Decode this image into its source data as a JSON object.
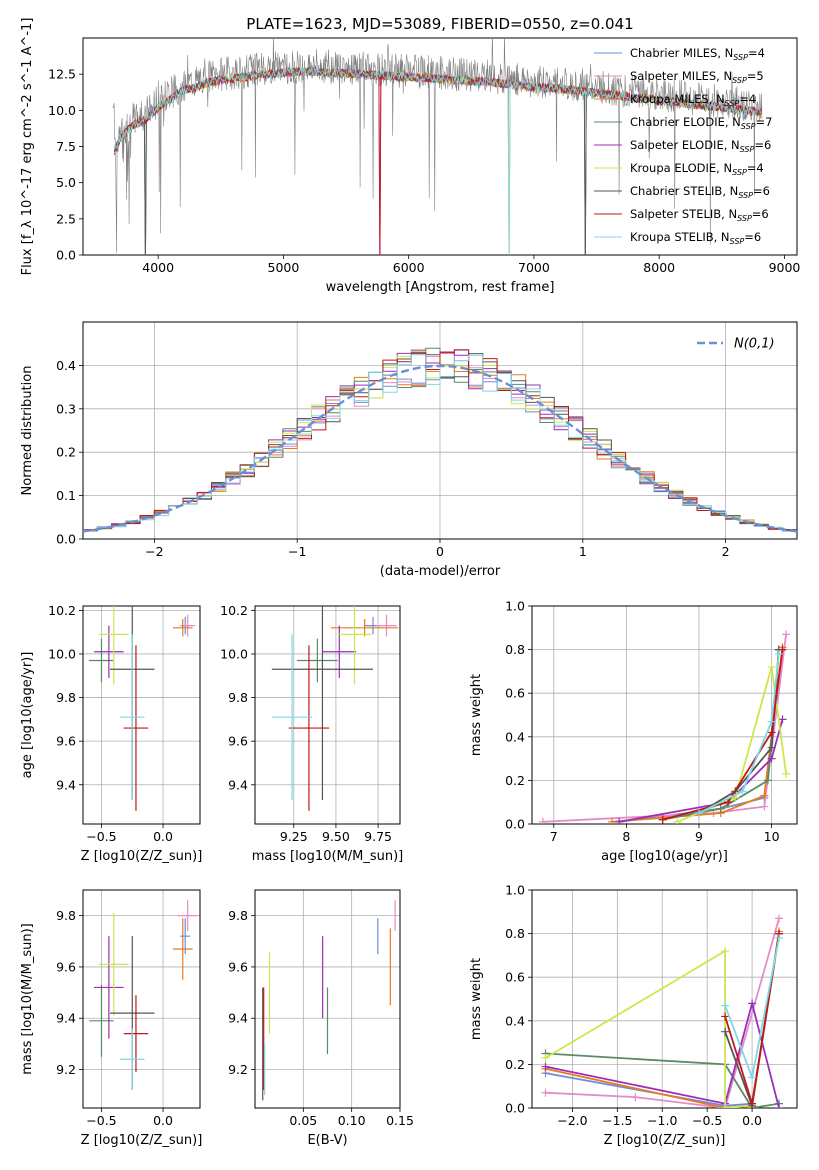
{
  "figure": {
    "title": "PLATE=1623, MJD=53089, FIBERID=0550, z=0.041"
  },
  "models": [
    {
      "name": "Chabrier MILES",
      "nssp": "4",
      "color": "#6a8fd8"
    },
    {
      "name": "Salpeter MILES",
      "nssp": "5",
      "color": "#e48bc8"
    },
    {
      "name": "Kroupa MILES",
      "nssp": "4",
      "color": "#e87a22"
    },
    {
      "name": "Chabrier ELODIE",
      "nssp": "7",
      "color": "#5b8a66"
    },
    {
      "name": "Salpeter ELODIE",
      "nssp": "6",
      "color": "#9a2fb8"
    },
    {
      "name": "Kroupa ELODIE",
      "nssp": "4",
      "color": "#cfe64a"
    },
    {
      "name": "Chabrier STELIB",
      "nssp": "6",
      "color": "#555555"
    },
    {
      "name": "Salpeter STELIB",
      "nssp": "6",
      "color": "#c01818"
    },
    {
      "name": "Kroupa STELIB",
      "nssp": "6",
      "color": "#7fd8e6"
    }
  ],
  "chart_data": [
    {
      "id": "spectrum",
      "type": "line",
      "xlabel": "wavelength [Angstrom, rest frame]",
      "ylabel": "Flux [f_λ 10^-17 erg cm^-2 s^-1 A^-1]",
      "xlim": [
        3400,
        9100
      ],
      "ylim": [
        0,
        15
      ],
      "xticks": [
        4000,
        5000,
        6000,
        7000,
        8000,
        9000
      ],
      "yticks": [
        0.0,
        2.5,
        5.0,
        7.5,
        10.0,
        12.5
      ],
      "grid": false,
      "legend": "right",
      "data_color": "#808080",
      "data_envelope": [
        [
          3650,
          7.6
        ],
        [
          3700,
          8.5
        ],
        [
          3800,
          9.4
        ],
        [
          3900,
          9.8
        ],
        [
          4000,
          10.6
        ],
        [
          4100,
          11.2
        ],
        [
          4200,
          11.8
        ],
        [
          4300,
          12.0
        ],
        [
          4400,
          12.3
        ],
        [
          4500,
          12.5
        ],
        [
          4600,
          12.6
        ],
        [
          4700,
          12.7
        ],
        [
          4800,
          12.9
        ],
        [
          5000,
          13.0
        ],
        [
          5200,
          13.1
        ],
        [
          5400,
          13.0
        ],
        [
          5600,
          12.9
        ],
        [
          5800,
          12.8
        ],
        [
          6000,
          12.7
        ],
        [
          6200,
          12.6
        ],
        [
          6400,
          12.5
        ],
        [
          6600,
          12.4
        ],
        [
          6800,
          12.2
        ],
        [
          7000,
          12.0
        ],
        [
          7200,
          11.9
        ],
        [
          7400,
          11.7
        ],
        [
          7600,
          11.5
        ],
        [
          7800,
          11.3
        ],
        [
          8000,
          11.1
        ],
        [
          8200,
          10.9
        ],
        [
          8400,
          10.7
        ],
        [
          8600,
          10.5
        ],
        [
          8800,
          10.3
        ]
      ],
      "model_dropouts": [
        3900,
        5770,
        6800,
        7410
      ]
    },
    {
      "id": "residuals",
      "type": "line",
      "xlabel": "(data-model)/error",
      "ylabel": "Normed distribution",
      "xlim": [
        -2.5,
        2.5
      ],
      "ylim": [
        0,
        0.5
      ],
      "xticks": [
        -2,
        -1,
        0,
        1,
        2
      ],
      "yticks": [
        0.0,
        0.1,
        0.2,
        0.3,
        0.4
      ],
      "grid": true,
      "legend": "top-right",
      "reference_label": "N(0,1)",
      "reference_color": "#6a8fd8",
      "bin_width": 0.1
    },
    {
      "id": "age_vs_Z",
      "type": "scatter",
      "xlabel": "Z [log10(Z/Z_sun)]",
      "ylabel": "age [log10(age/yr)]",
      "xlim": [
        -0.65,
        0.3
      ],
      "ylim": [
        9.22,
        10.22
      ],
      "xticks": [
        -0.5,
        0.0
      ],
      "yticks": [
        9.4,
        9.6,
        9.8,
        10.0,
        10.2
      ],
      "grid": true,
      "points": [
        {
          "model": 0,
          "x": 0.18,
          "y": 10.13,
          "xerr": 0.04,
          "yerr": 0.04
        },
        {
          "model": 1,
          "x": 0.2,
          "y": 10.13,
          "xerr": 0.06,
          "yerr": 0.05
        },
        {
          "model": 2,
          "x": 0.16,
          "y": 10.12,
          "xerr": 0.08,
          "yerr": 0.04
        },
        {
          "model": 3,
          "x": -0.5,
          "y": 9.97,
          "xerr": 0.1,
          "yerr": 0.1
        },
        {
          "model": 4,
          "x": -0.44,
          "y": 10.01,
          "xerr": 0.12,
          "yerr": 0.12
        },
        {
          "model": 5,
          "x": -0.4,
          "y": 10.09,
          "xerr": 0.12,
          "yerr": 0.23
        },
        {
          "model": 6,
          "x": -0.25,
          "y": 9.93,
          "xerr": 0.18,
          "yerr": 0.6
        },
        {
          "model": 7,
          "x": -0.22,
          "y": 9.66,
          "xerr": 0.1,
          "yerr": 0.38
        },
        {
          "model": 8,
          "x": -0.25,
          "y": 9.71,
          "xerr": 0.1,
          "yerr": 0.38
        }
      ]
    },
    {
      "id": "age_vs_mass",
      "type": "scatter",
      "xlabel": "mass [log10(M/M_sun)]",
      "ylabel": "",
      "xlim": [
        9.02,
        9.88
      ],
      "ylim": [
        9.22,
        10.22
      ],
      "xticks": [
        9.25,
        9.5,
        9.75
      ],
      "yticks": [
        9.4,
        9.6,
        9.8,
        10.0,
        10.2
      ],
      "grid": true,
      "points": [
        {
          "model": 0,
          "x": 9.72,
          "y": 10.13,
          "xerr": 0.05,
          "yerr": 0.04
        },
        {
          "model": 1,
          "x": 9.8,
          "y": 10.13,
          "xerr": 0.06,
          "yerr": 0.05
        },
        {
          "model": 2,
          "x": 9.67,
          "y": 10.12,
          "xerr": 0.2,
          "yerr": 0.04
        },
        {
          "model": 3,
          "x": 9.39,
          "y": 9.97,
          "xerr": 0.12,
          "yerr": 0.1
        },
        {
          "model": 4,
          "x": 9.52,
          "y": 10.01,
          "xerr": 0.1,
          "yerr": 0.12
        },
        {
          "model": 5,
          "x": 9.61,
          "y": 10.09,
          "xerr": 0.1,
          "yerr": 0.23
        },
        {
          "model": 6,
          "x": 9.42,
          "y": 9.93,
          "xerr": 0.3,
          "yerr": 0.6
        },
        {
          "model": 7,
          "x": 9.34,
          "y": 9.66,
          "xerr": 0.12,
          "yerr": 0.38
        },
        {
          "model": 8,
          "x": 9.24,
          "y": 9.71,
          "xerr": 0.12,
          "yerr": 0.38
        }
      ]
    },
    {
      "id": "weight_vs_age",
      "type": "line",
      "xlabel": "age [log10(age/yr)]",
      "ylabel": "mass weight",
      "xlim": [
        6.7,
        10.35
      ],
      "ylim": [
        0,
        1
      ],
      "xticks": [
        7,
        8,
        9,
        10
      ],
      "yticks": [
        0.0,
        0.2,
        0.4,
        0.6,
        0.8,
        1.0
      ],
      "grid": true,
      "series": [
        {
          "model": 0,
          "x": [
            7.9,
            9.3,
            9.9,
            10.15
          ],
          "y": [
            0.01,
            0.07,
            0.12,
            0.8
          ]
        },
        {
          "model": 1,
          "x": [
            6.85,
            9.2,
            9.9,
            10.2
          ],
          "y": [
            0.01,
            0.05,
            0.08,
            0.87
          ]
        },
        {
          "model": 2,
          "x": [
            7.8,
            9.3,
            9.9,
            10.15
          ],
          "y": [
            0.01,
            0.05,
            0.13,
            0.81
          ]
        },
        {
          "model": 3,
          "x": [
            8.5,
            9.3,
            9.95,
            10.1
          ],
          "y": [
            0.02,
            0.07,
            0.2,
            0.8
          ]
        },
        {
          "model": 4,
          "x": [
            7.9,
            9.4,
            10.0,
            10.15
          ],
          "y": [
            0.01,
            0.1,
            0.3,
            0.48
          ]
        },
        {
          "model": 5,
          "x": [
            8.7,
            9.5,
            10.0,
            10.2
          ],
          "y": [
            0.01,
            0.12,
            0.72,
            0.23
          ]
        },
        {
          "model": 6,
          "x": [
            9.0,
            9.5,
            10.0,
            10.1
          ],
          "y": [
            0.05,
            0.15,
            0.35,
            0.8
          ]
        },
        {
          "model": 7,
          "x": [
            8.5,
            9.4,
            10.0,
            10.15
          ],
          "y": [
            0.02,
            0.1,
            0.42,
            0.8
          ]
        },
        {
          "model": 8,
          "x": [
            9.0,
            9.6,
            10.0,
            10.1
          ],
          "y": [
            0.05,
            0.15,
            0.47,
            0.78
          ]
        }
      ]
    },
    {
      "id": "mass_vs_Z",
      "type": "scatter",
      "xlabel": "Z [log10(Z/Z_sun)]",
      "ylabel": "mass [log10(M/M_sun)]",
      "xlim": [
        -0.65,
        0.3
      ],
      "ylim": [
        9.05,
        9.9
      ],
      "xticks": [
        -0.5,
        0.0
      ],
      "yticks": [
        9.2,
        9.4,
        9.6,
        9.8
      ],
      "grid": true,
      "points": [
        {
          "model": 0,
          "x": 0.18,
          "y": 9.72,
          "xerr": 0.04,
          "yerr": 0.07
        },
        {
          "model": 1,
          "x": 0.2,
          "y": 9.8,
          "xerr": 0.08,
          "yerr": 0.06
        },
        {
          "model": 2,
          "x": 0.16,
          "y": 9.67,
          "xerr": 0.08,
          "yerr": 0.12
        },
        {
          "model": 3,
          "x": -0.5,
          "y": 9.39,
          "xerr": 0.1,
          "yerr": 0.14
        },
        {
          "model": 4,
          "x": -0.44,
          "y": 9.52,
          "xerr": 0.12,
          "yerr": 0.2
        },
        {
          "model": 5,
          "x": -0.4,
          "y": 9.61,
          "xerr": 0.12,
          "yerr": 0.2
        },
        {
          "model": 6,
          "x": -0.25,
          "y": 9.42,
          "xerr": 0.18,
          "yerr": 0.3
        },
        {
          "model": 7,
          "x": -0.22,
          "y": 9.34,
          "xerr": 0.1,
          "yerr": 0.15
        },
        {
          "model": 8,
          "x": -0.25,
          "y": 9.24,
          "xerr": 0.1,
          "yerr": 0.12
        }
      ]
    },
    {
      "id": "mass_vs_ebv",
      "type": "scatter",
      "xlabel": "E(B-V)",
      "ylabel": "",
      "xlim": [
        0.0,
        0.15
      ],
      "ylim": [
        9.05,
        9.9
      ],
      "xticks": [
        0.05,
        0.1,
        0.15
      ],
      "yticks": [
        9.2,
        9.4,
        9.6,
        9.8
      ],
      "grid": true,
      "points": [
        {
          "model": 0,
          "x": 0.127,
          "y": 9.72,
          "yerr": 0.07
        },
        {
          "model": 1,
          "x": 0.145,
          "y": 9.8,
          "yerr": 0.06
        },
        {
          "model": 2,
          "x": 0.14,
          "y": 9.6,
          "yerr": 0.15
        },
        {
          "model": 3,
          "x": 0.075,
          "y": 9.39,
          "yerr": 0.13
        },
        {
          "model": 4,
          "x": 0.07,
          "y": 9.56,
          "yerr": 0.16
        },
        {
          "model": 5,
          "x": 0.015,
          "y": 9.5,
          "yerr": 0.16
        },
        {
          "model": 6,
          "x": 0.008,
          "y": 9.3,
          "yerr": 0.22
        },
        {
          "model": 7,
          "x": 0.009,
          "y": 9.32,
          "yerr": 0.2
        },
        {
          "model": 8,
          "x": 0.01,
          "y": 9.2,
          "yerr": 0.1
        }
      ]
    },
    {
      "id": "weight_vs_Z",
      "type": "line",
      "xlabel": "Z [log10(Z/Z_sun)]",
      "ylabel": "mass weight",
      "xlim": [
        -2.45,
        0.5
      ],
      "ylim": [
        0,
        1
      ],
      "xticks": [
        -2.0,
        -1.5,
        -1.0,
        -0.5,
        0.0
      ],
      "yticks": [
        0.0,
        0.2,
        0.4,
        0.6,
        0.8,
        1.0
      ],
      "grid": true,
      "series": [
        {
          "model": 0,
          "x": [
            -2.3,
            -0.3,
            0.0,
            0.3
          ],
          "y": [
            0.16,
            0.01,
            0.02,
            0.8
          ]
        },
        {
          "model": 1,
          "x": [
            -2.3,
            -1.3,
            -0.3,
            0.3
          ],
          "y": [
            0.07,
            0.05,
            0.0,
            0.87
          ]
        },
        {
          "model": 2,
          "x": [
            -2.3,
            -0.3,
            0.0,
            0.3
          ],
          "y": [
            0.18,
            0.0,
            0.01,
            0.81
          ]
        },
        {
          "model": 3,
          "x": [
            -2.3,
            -0.3,
            0.0,
            0.3
          ],
          "y": [
            0.25,
            0.2,
            0.0,
            0.02
          ]
        },
        {
          "model": 4,
          "x": [
            -2.3,
            -0.3,
            0.0,
            0.3
          ],
          "y": [
            0.19,
            0.02,
            0.48,
            0.0
          ]
        },
        {
          "model": 5,
          "x": [
            -2.3,
            -0.3,
            -0.3,
            0.0
          ],
          "y": [
            0.23,
            0.72,
            0.0,
            0.01
          ]
        },
        {
          "model": 6,
          "x": [
            -0.3,
            0.0,
            0.3
          ],
          "y": [
            0.35,
            0.01,
            0.8
          ]
        },
        {
          "model": 7,
          "x": [
            -0.3,
            0.0,
            0.3
          ],
          "y": [
            0.42,
            0.02,
            0.8
          ]
        },
        {
          "model": 8,
          "x": [
            -0.3,
            0.0,
            0.3
          ],
          "y": [
            0.47,
            0.14,
            0.78
          ]
        }
      ]
    }
  ]
}
